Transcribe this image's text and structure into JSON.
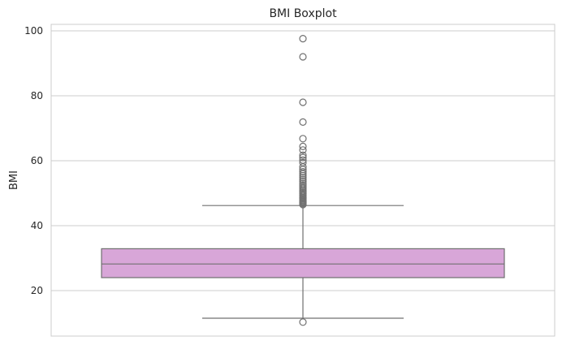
{
  "chart_data": {
    "type": "boxplot",
    "title": "BMI Boxplot",
    "xlabel": "",
    "ylabel": "BMI",
    "ylim": [
      6,
      102
    ],
    "yticks": [
      20,
      40,
      60,
      80,
      100
    ],
    "grid": true,
    "series": [
      {
        "name": "BMI",
        "color": "#d8a6d8",
        "edge_color": "#707070",
        "whisker_low": 11.5,
        "q1": 24.0,
        "median": 28.2,
        "q3": 32.9,
        "whisker_high": 46.2,
        "outliers": [
          10.3,
          46.5,
          46.8,
          47.1,
          47.4,
          47.7,
          48.0,
          48.3,
          48.6,
          49.0,
          49.4,
          49.8,
          50.2,
          50.6,
          51.0,
          51.5,
          52.0,
          52.5,
          53.0,
          53.6,
          54.2,
          54.8,
          55.4,
          56.0,
          56.6,
          57.3,
          58.1,
          59.4,
          60.2,
          61.0,
          61.7,
          63.3,
          64.4,
          66.8,
          71.9,
          78.0,
          92.0,
          97.6
        ]
      }
    ]
  }
}
